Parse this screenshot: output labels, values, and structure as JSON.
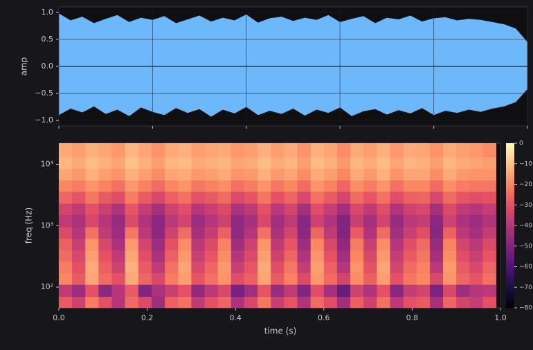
{
  "chart_data": [
    {
      "type": "area",
      "ylabel": "amp",
      "grid": true,
      "x": [
        0,
        0.025,
        0.05,
        0.075,
        0.1,
        0.125,
        0.15,
        0.175,
        0.2,
        0.225,
        0.25,
        0.275,
        0.3,
        0.325,
        0.35,
        0.375,
        0.4,
        0.425,
        0.45,
        0.475,
        0.5,
        0.525,
        0.55,
        0.575,
        0.6,
        0.625,
        0.65,
        0.675,
        0.7,
        0.725,
        0.75,
        0.775,
        0.8,
        0.825,
        0.85,
        0.875,
        0.9,
        0.925,
        0.95,
        0.975,
        1
      ],
      "series": [
        {
          "color": "#6cb8fa",
          "values": [
            0.98,
            0.85,
            0.92,
            0.8,
            0.88,
            0.95,
            0.82,
            0.9,
            0.86,
            0.93,
            0.8,
            0.87,
            0.94,
            0.83,
            0.9,
            0.85,
            0.96,
            0.81,
            0.89,
            0.92,
            0.84,
            0.9,
            0.86,
            0.95,
            0.82,
            0.88,
            0.93,
            0.8,
            0.9,
            0.87,
            0.94,
            0.83,
            0.89,
            0.91,
            0.85,
            0.88,
            0.86,
            0.82,
            0.78,
            0.7,
            0.45
          ]
        },
        {
          "color": "#6cb8fa",
          "values": [
            -0.9,
            -0.78,
            -0.85,
            -0.74,
            -0.88,
            -0.8,
            -0.92,
            -0.76,
            -0.84,
            -0.9,
            -0.77,
            -0.86,
            -0.79,
            -0.93,
            -0.8,
            -0.87,
            -0.75,
            -0.9,
            -0.82,
            -0.88,
            -0.78,
            -0.91,
            -0.8,
            -0.86,
            -0.76,
            -0.92,
            -0.83,
            -0.79,
            -0.89,
            -0.81,
            -0.87,
            -0.77,
            -0.9,
            -0.82,
            -0.86,
            -0.8,
            -0.84,
            -0.78,
            -0.74,
            -0.66,
            -0.42
          ]
        }
      ],
      "xlim": [
        0,
        1
      ],
      "xticks": [
        0,
        0.2,
        0.4,
        0.6,
        0.8,
        1
      ],
      "ylim": [
        -1.1,
        1.1
      ],
      "yticks": [
        {
          "value": 1,
          "label": "1.0"
        },
        0.5,
        {
          "value": 0,
          "label": "0.0"
        },
        {
          "value": -0.5,
          "label": "−0.5"
        },
        {
          "value": -1,
          "label": "−1.0"
        }
      ]
    },
    {
      "type": "heatmap",
      "xlabel": "time (s)",
      "ylabel": "freq (Hz)",
      "grid": false,
      "ylog": true,
      "colormap": "magma",
      "x": [
        0,
        0.03,
        0.06,
        0.09,
        0.12,
        0.15,
        0.18,
        0.21,
        0.24,
        0.27,
        0.3,
        0.33,
        0.36,
        0.39,
        0.42,
        0.45,
        0.48,
        0.51,
        0.54,
        0.57,
        0.6,
        0.63,
        0.66,
        0.69,
        0.72,
        0.75,
        0.78,
        0.81,
        0.84,
        0.87,
        0.9,
        0.93,
        0.96,
        0.99
      ],
      "y": [
        46,
        70,
        110,
        170,
        260,
        400,
        620,
        950,
        1500,
        2300,
        3600,
        5500,
        8500,
        13000,
        22050
      ],
      "z": [
        [
          -28,
          -35,
          -22,
          -30,
          -40,
          -25,
          -32,
          -45,
          -27,
          -24,
          -38,
          -30,
          -26,
          -42,
          -33,
          -23,
          -36,
          -29,
          -41,
          -25,
          -31,
          -44,
          -27,
          -35,
          -24,
          -39,
          -30,
          -28,
          -43,
          -26,
          -34,
          -37,
          -30
        ],
        [
          -38,
          -45,
          -30,
          -48,
          -40,
          -28,
          -50,
          -42,
          -36,
          -30,
          -47,
          -39,
          -33,
          -52,
          -44,
          -29,
          -46,
          -38,
          -50,
          -31,
          -43,
          -55,
          -35,
          -41,
          -30,
          -49,
          -37,
          -34,
          -51,
          -33,
          -45,
          -40,
          -39
        ],
        [
          -20,
          -28,
          -15,
          -25,
          -30,
          -14,
          -26,
          -33,
          -22,
          -16,
          -29,
          -24,
          -18,
          -31,
          -27,
          -15,
          -28,
          -21,
          -32,
          -17,
          -25,
          -34,
          -19,
          -27,
          -16,
          -30,
          -23,
          -20,
          -33,
          -18,
          -26,
          -29,
          -24
        ],
        [
          -22,
          -30,
          -14,
          -27,
          -35,
          -13,
          -28,
          -38,
          -24,
          -15,
          -33,
          -26,
          -17,
          -36,
          -29,
          -14,
          -31,
          -23,
          -37,
          -16,
          -27,
          -40,
          -18,
          -30,
          -15,
          -34,
          -25,
          -21,
          -39,
          -17,
          -28,
          -33,
          -26
        ],
        [
          -25,
          -33,
          -16,
          -30,
          -38,
          -15,
          -31,
          -42,
          -27,
          -17,
          -36,
          -29,
          -19,
          -40,
          -32,
          -16,
          -35,
          -26,
          -41,
          -18,
          -30,
          -44,
          -20,
          -33,
          -17,
          -37,
          -28,
          -23,
          -43,
          -19,
          -31,
          -36,
          -29
        ],
        [
          -27,
          -36,
          -18,
          -33,
          -42,
          -17,
          -34,
          -45,
          -30,
          -19,
          -39,
          -32,
          -21,
          -44,
          -35,
          -18,
          -38,
          -29,
          -45,
          -20,
          -33,
          -47,
          -22,
          -36,
          -19,
          -40,
          -31,
          -25,
          -46,
          -21,
          -34,
          -39,
          -32
        ],
        [
          -32,
          -40,
          -24,
          -38,
          -45,
          -23,
          -39,
          -48,
          -35,
          -25,
          -43,
          -37,
          -27,
          -47,
          -40,
          -24,
          -42,
          -34,
          -48,
          -26,
          -38,
          -50,
          -28,
          -41,
          -25,
          -44,
          -36,
          -31,
          -49,
          -27,
          -39,
          -43,
          -37
        ],
        [
          -38,
          -42,
          -33,
          -40,
          -46,
          -32,
          -41,
          -48,
          -39,
          -34,
          -45,
          -40,
          -35,
          -47,
          -43,
          -33,
          -44,
          -38,
          -49,
          -35,
          -41,
          -50,
          -36,
          -43,
          -34,
          -46,
          -39,
          -37,
          -48,
          -35,
          -42,
          -45,
          -41
        ],
        [
          -34,
          -38,
          -30,
          -36,
          -41,
          -29,
          -37,
          -43,
          -35,
          -31,
          -40,
          -36,
          -32,
          -42,
          -38,
          -30,
          -39,
          -34,
          -43,
          -31,
          -37,
          -44,
          -33,
          -38,
          -31,
          -41,
          -35,
          -33,
          -43,
          -32,
          -38,
          -40,
          -37
        ],
        [
          -26,
          -29,
          -23,
          -28,
          -31,
          -22,
          -28,
          -33,
          -27,
          -24,
          -30,
          -28,
          -25,
          -32,
          -29,
          -23,
          -30,
          -26,
          -33,
          -24,
          -28,
          -34,
          -25,
          -29,
          -24,
          -31,
          -27,
          -26,
          -33,
          -25,
          -29,
          -31,
          -30
        ],
        [
          -20,
          -22,
          -18,
          -21,
          -24,
          -17,
          -21,
          -25,
          -20,
          -18,
          -23,
          -21,
          -19,
          -24,
          -22,
          -18,
          -23,
          -20,
          -25,
          -18,
          -21,
          -26,
          -19,
          -22,
          -18,
          -24,
          -20,
          -20,
          -25,
          -19,
          -22,
          -23,
          -23
        ],
        [
          -15,
          -17,
          -13,
          -16,
          -18,
          -13,
          -16,
          -19,
          -15,
          -14,
          -17,
          -16,
          -14,
          -18,
          -17,
          -13,
          -17,
          -15,
          -19,
          -14,
          -16,
          -20,
          -14,
          -17,
          -13,
          -18,
          -15,
          -15,
          -19,
          -14,
          -17,
          -18,
          -18
        ],
        [
          -12,
          -14,
          -11,
          -13,
          -15,
          -10,
          -13,
          -16,
          -12,
          -11,
          -14,
          -13,
          -12,
          -15,
          -14,
          -11,
          -14,
          -12,
          -16,
          -11,
          -13,
          -17,
          -12,
          -14,
          -11,
          -15,
          -12,
          -13,
          -16,
          -12,
          -14,
          -15,
          -16
        ],
        [
          -14,
          -16,
          -13,
          -15,
          -17,
          -12,
          -15,
          -18,
          -14,
          -13,
          -16,
          -15,
          -14,
          -17,
          -16,
          -13,
          -16,
          -14,
          -18,
          -13,
          -15,
          -19,
          -14,
          -16,
          -13,
          -17,
          -14,
          -15,
          -18,
          -14,
          -16,
          -17,
          -19
        ]
      ],
      "xlim": [
        0,
        1
      ],
      "xticks": [
        {
          "value": 0,
          "label": "0.0"
        },
        0.2,
        0.4,
        0.6,
        0.8,
        {
          "value": 1,
          "label": "1.0"
        }
      ],
      "ylim": [
        46,
        22050
      ],
      "yticks": [
        {
          "value": 100,
          "label": "10²"
        },
        {
          "value": 1000,
          "label": "10³"
        },
        {
          "value": 10000,
          "label": "10⁴"
        }
      ],
      "zlim": [
        -80,
        0
      ],
      "zticks": [
        0,
        {
          "value": -10,
          "label": "−10"
        },
        {
          "value": -20,
          "label": "−20"
        },
        {
          "value": -30,
          "label": "−30"
        },
        {
          "value": -40,
          "label": "−40"
        },
        {
          "value": -50,
          "label": "−50"
        },
        {
          "value": -60,
          "label": "−60"
        },
        {
          "value": -70,
          "label": "−70"
        },
        {
          "value": -80,
          "label": "−80"
        }
      ]
    }
  ]
}
